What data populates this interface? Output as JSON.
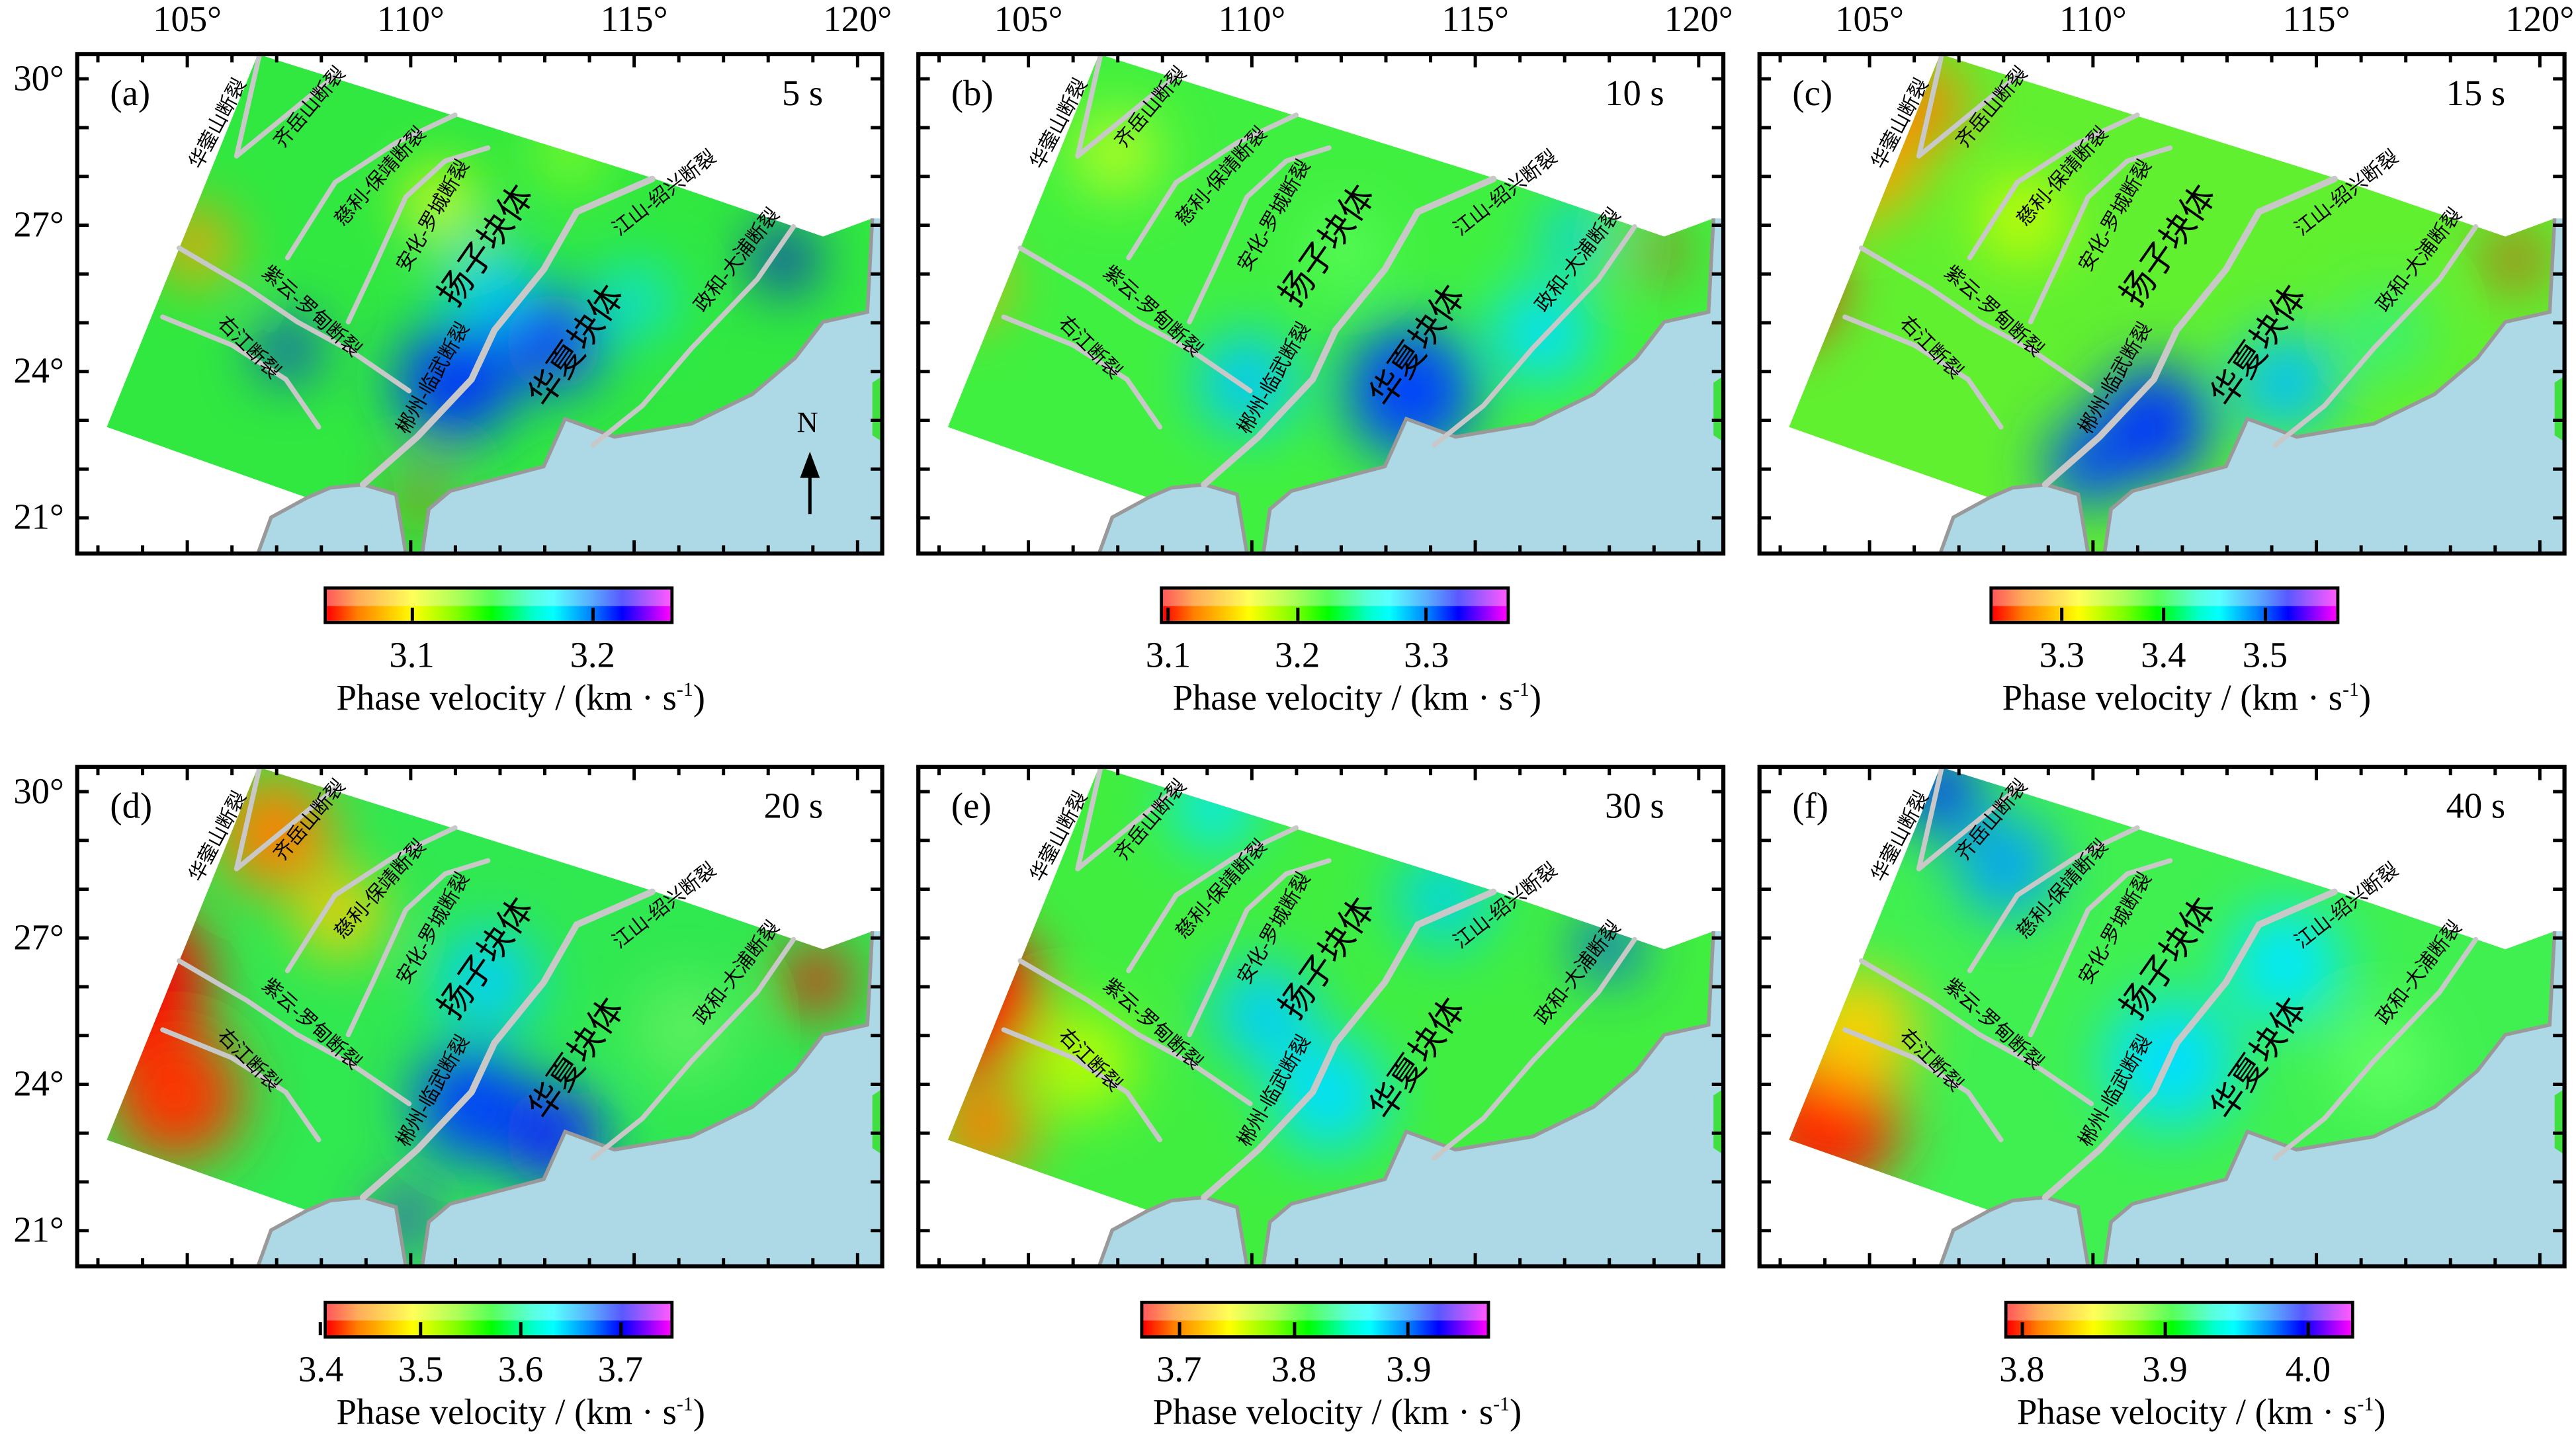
{
  "figure": {
    "lon_labels": [
      "105°",
      "110°",
      "115°",
      "120°"
    ],
    "lon_values": [
      105,
      110,
      115,
      120
    ],
    "lat_labels": [
      "30°",
      "27°",
      "24°",
      "21°"
    ],
    "lat_values": [
      30,
      27,
      24,
      21
    ],
    "north_label": "N",
    "colorbar_title": {
      "text": "Phase velocity / (km · s",
      "sup": "-1",
      "close": ")"
    },
    "fault_labels": [
      "华蓥山断裂",
      "齐岳山断裂",
      "慈利-保靖断裂",
      "安化-罗城断裂",
      "紫云-罗甸断裂",
      "右江断裂",
      "郴州-临武断裂",
      "江山-绍兴断裂",
      "政和-大浦断裂"
    ],
    "block_labels": [
      "扬子块体",
      "华夏块体"
    ],
    "colors": {
      "sea": "#add8e6",
      "coast": "#999999",
      "fault": "#c8c8c8",
      "background_land": "#ffffff"
    }
  },
  "panels": [
    {
      "label": "(a)",
      "period": "5 s",
      "colorbar": {
        "range": [
          3.053,
          3.243
        ],
        "ticks": [
          "3.1",
          "3.2"
        ],
        "tick_values": [
          3.1,
          3.2
        ]
      }
    },
    {
      "label": "(b)",
      "period": "10 s",
      "colorbar": {
        "range": [
          3.096,
          3.362
        ],
        "ticks": [
          "3.1",
          "3.2",
          "3.3"
        ],
        "tick_values": [
          3.1,
          3.2,
          3.3
        ]
      }
    },
    {
      "label": "(c)",
      "period": "15 s",
      "colorbar": {
        "range": [
          3.232,
          3.57
        ],
        "ticks": [
          "3.3",
          "3.4",
          "3.5"
        ],
        "tick_values": [
          3.3,
          3.4,
          3.5
        ]
      }
    },
    {
      "label": "(d)",
      "period": "20 s",
      "colorbar": {
        "range": [
          3.406,
          3.75
        ],
        "ticks": [
          "3.4",
          "3.5",
          "3.6",
          "3.7"
        ],
        "tick_values": [
          3.4,
          3.5,
          3.6,
          3.7
        ]
      }
    },
    {
      "label": "(e)",
      "period": "30 s",
      "colorbar": {
        "range": [
          3.669,
          3.968
        ],
        "ticks": [
          "3.7",
          "3.8",
          "3.9"
        ],
        "tick_values": [
          3.7,
          3.8,
          3.9
        ]
      }
    },
    {
      "label": "(f)",
      "period": "40 s",
      "colorbar": {
        "range": [
          3.79,
          4.03
        ],
        "ticks": [
          "3.8",
          "3.9",
          "4.0"
        ],
        "tick_values": [
          3.8,
          3.9,
          4.0
        ]
      }
    }
  ]
}
